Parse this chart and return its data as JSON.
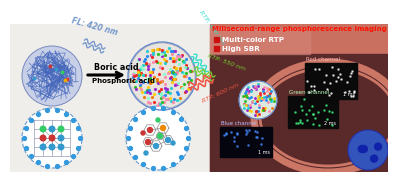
{
  "title": "Milisecond-range phosphorescence imaging",
  "fl_label": "FL: 420 nm",
  "boric_acid": "Boric acid",
  "phosphoric_acid": "Phosphoric acid",
  "rtp_480": "RTP: 480 nm",
  "rtp_550": "RTP: 550 nm",
  "rtp_600": "RTP: 600 nm",
  "bullet1": "Multi-color RTP",
  "bullet2": "High SBR",
  "red_channel": "Red channel",
  "green_channel": "Green channel",
  "blue_channel": "Blue channel",
  "time1": "1 ms",
  "time2": "2 ms",
  "time3": "1 ms",
  "bg_left_color": "#f0eeeb",
  "bg_right_color": "#c97060",
  "title_color": "#ff1100",
  "fl_color": "#7799cc",
  "rtp480_color": "#33ddcc",
  "rtp550_color": "#77cc33",
  "rtp600_color": "#ee5544",
  "bullet_color": "#cc1111",
  "sphere1_fill": "#c8d0e8",
  "sphere1_edge": "#7788bb",
  "sphere2_fill": "#e8e5e0",
  "cell_dark": "#5a2a2a",
  "membrane_color": "#cc7766",
  "probe_fill": "#dde8e8"
}
